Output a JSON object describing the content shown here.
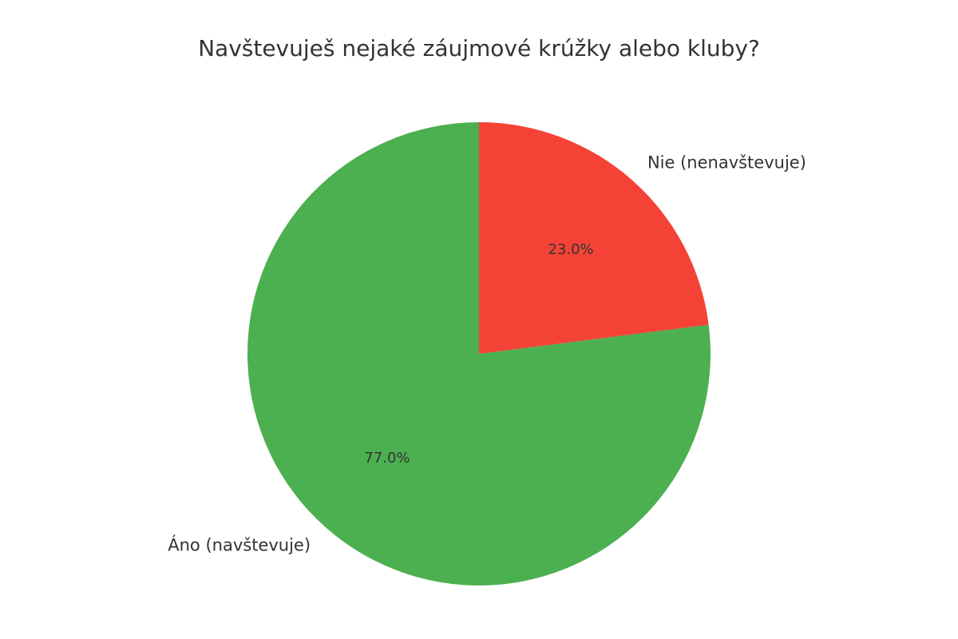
{
  "chart_data": {
    "type": "pie",
    "title": "Navštevuješ nejaké záujmové krúžky alebo kluby?",
    "slices": [
      {
        "label": "Nie (nenavštevuje)",
        "value": 23.0,
        "pct_label": "23.0%",
        "color": "#F44336"
      },
      {
        "label": "Áno (navštevuje)",
        "value": 77.0,
        "pct_label": "77.0%",
        "color": "#4CAF50"
      }
    ],
    "start_angle_deg": 90,
    "direction": "clockwise",
    "legend": "none"
  }
}
